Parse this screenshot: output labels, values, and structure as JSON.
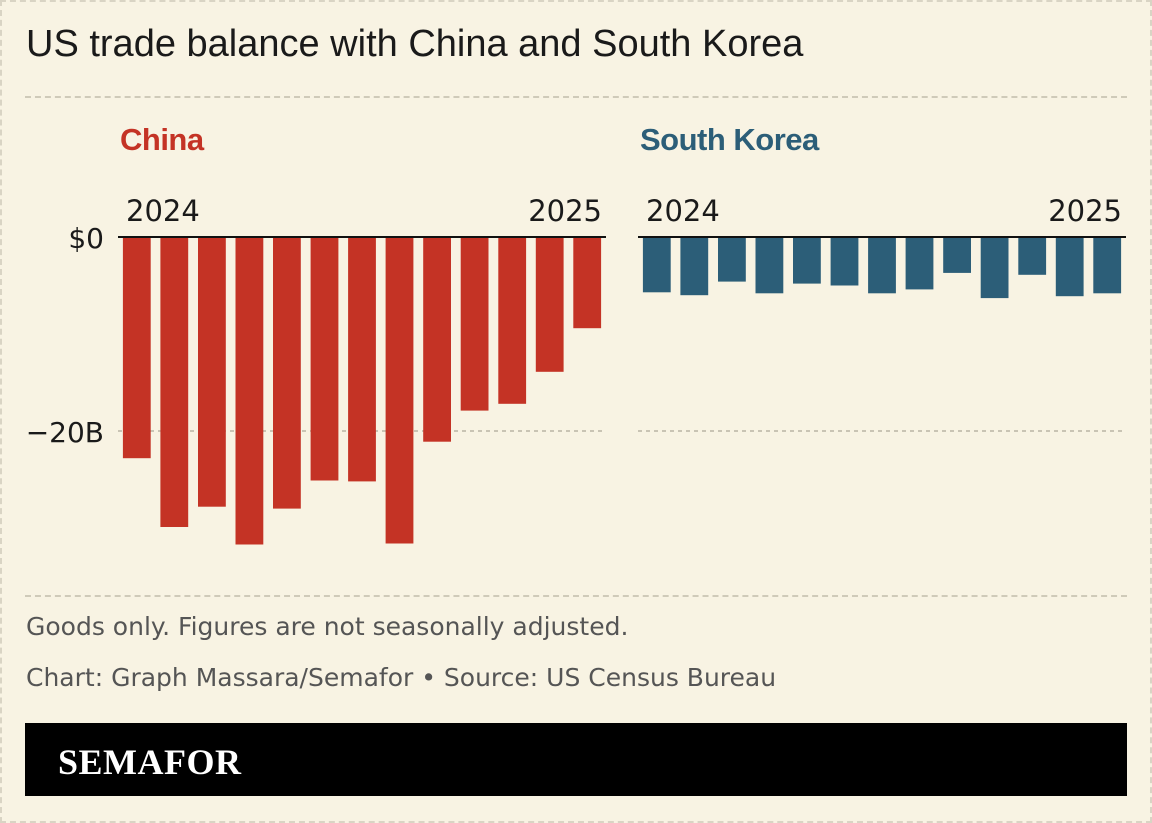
{
  "title": "US trade balance with China and South Korea",
  "notes": {
    "goods": "Goods only. Figures are not seasonally adjusted.",
    "credit": "Chart: Graph Massara/Semafor • Source: US Census Bureau"
  },
  "brand": "SEMAFOR",
  "colors": {
    "background": "#f8f3e3",
    "china": "#c43325",
    "south_korea": "#2c5e78",
    "brand_bar": "#000000"
  },
  "chart_data": [
    {
      "type": "bar",
      "title": "China",
      "color": "#c43325",
      "unit": "USD billions",
      "year_labels": [
        "2024",
        "2025"
      ],
      "y_ticks": [
        {
          "value": 0,
          "label": "$0"
        },
        {
          "value": -20,
          "label": "−20B"
        }
      ],
      "ylim": [
        -32,
        0
      ],
      "values": [
        -22.8,
        -29.9,
        -27.8,
        -31.7,
        -28.0,
        -25.1,
        -25.2,
        -31.6,
        -21.1,
        -17.9,
        -17.2,
        -13.9,
        -9.4
      ],
      "grid": true
    },
    {
      "type": "bar",
      "title": "South Korea",
      "color": "#2c5e78",
      "unit": "USD billions",
      "year_labels": [
        "2024",
        "2025"
      ],
      "y_ticks": [
        {
          "value": 0,
          "label": ""
        },
        {
          "value": -20,
          "label": ""
        }
      ],
      "ylim": [
        -32,
        0
      ],
      "values": [
        -5.7,
        -6.0,
        -4.6,
        -5.8,
        -4.8,
        -5.0,
        -5.8,
        -5.4,
        -3.7,
        -6.3,
        -3.9,
        -6.1,
        -5.8
      ],
      "grid": true
    }
  ]
}
